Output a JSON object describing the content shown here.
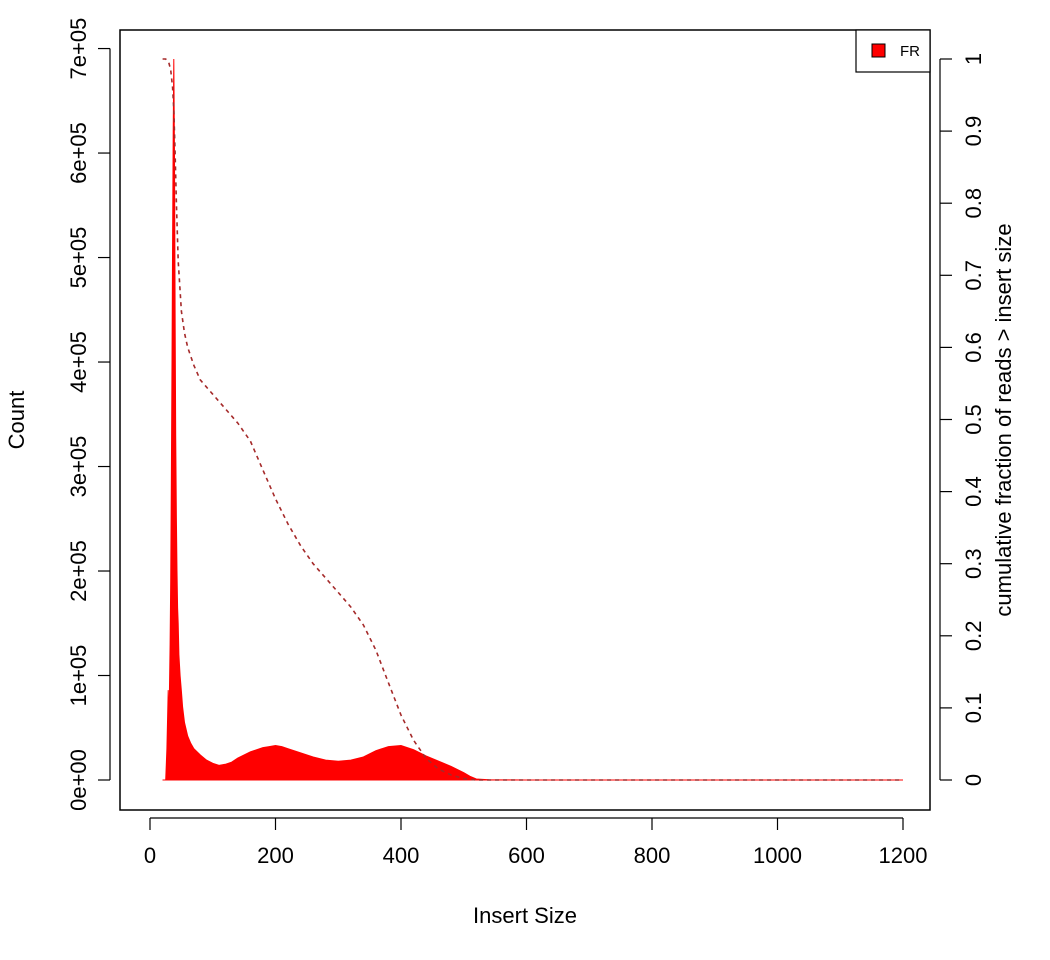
{
  "chart_data": {
    "type": "area",
    "title": "",
    "xlabel": "Insert Size",
    "ylabel": "Count",
    "y2label": "cumulative fraction of reads > insert size",
    "xlim": [
      0,
      1200
    ],
    "ylim": [
      0,
      690000
    ],
    "y2lim": [
      0,
      1
    ],
    "x_ticks": [
      0,
      200,
      400,
      600,
      800,
      1000,
      1200
    ],
    "y_ticks": [
      0,
      100000,
      200000,
      300000,
      400000,
      500000,
      600000,
      700000
    ],
    "y_tick_labels": [
      "0e+00",
      "1e+05",
      "2e+05",
      "3e+05",
      "4e+05",
      "5e+05",
      "6e+05",
      "7e+05"
    ],
    "y2_ticks": [
      0,
      0.1,
      0.2,
      0.3,
      0.4,
      0.5,
      0.6,
      0.7,
      0.8,
      0.9,
      1
    ],
    "y2_tick_labels": [
      "0",
      "0.1",
      "0.2",
      "0.3",
      "0.4",
      "0.5",
      "0.6",
      "0.7",
      "0.8",
      "0.9",
      "1"
    ],
    "grid": false,
    "legend": {
      "position": "top-right",
      "entries": [
        {
          "name": "FR",
          "color": "#ff0000"
        }
      ]
    },
    "series": [
      {
        "name": "FR",
        "kind": "histogram-area",
        "axis": "left",
        "color": "#ff0000",
        "x": [
          20,
          25,
          27,
          28,
          29,
          30,
          31,
          32,
          33,
          34,
          35,
          36,
          37,
          38,
          39,
          40,
          41,
          42,
          43,
          44,
          45,
          46,
          48,
          50,
          52,
          55,
          60,
          65,
          70,
          80,
          90,
          100,
          110,
          120,
          130,
          140,
          150,
          160,
          170,
          180,
          190,
          200,
          210,
          220,
          240,
          260,
          280,
          300,
          320,
          340,
          360,
          380,
          400,
          420,
          440,
          460,
          480,
          490,
          500,
          510,
          520,
          540,
          600,
          800,
          1000,
          1200
        ],
        "y": [
          0,
          0,
          30000,
          60000,
          86000,
          50000,
          90000,
          130000,
          190000,
          280000,
          400000,
          520000,
          620000,
          690000,
          600000,
          450000,
          330000,
          250000,
          200000,
          165000,
          150000,
          120000,
          100000,
          85000,
          70000,
          55000,
          42000,
          35000,
          30000,
          24000,
          19000,
          16000,
          14000,
          15000,
          17000,
          21000,
          24000,
          27000,
          29000,
          31000,
          32000,
          33000,
          32000,
          30000,
          26000,
          22000,
          19000,
          18000,
          19000,
          22000,
          28000,
          32000,
          33000,
          29000,
          23000,
          18000,
          13000,
          10000,
          7000,
          3500,
          1000,
          200,
          0,
          0,
          0,
          0
        ]
      },
      {
        "name": "",
        "kind": "cumulative",
        "axis": "right",
        "color": "#a52a2a",
        "style": "dashed",
        "x": [
          20,
          25,
          30,
          33,
          36,
          38,
          40,
          42,
          45,
          50,
          55,
          60,
          70,
          80,
          100,
          120,
          140,
          160,
          180,
          200,
          220,
          240,
          260,
          280,
          300,
          320,
          340,
          360,
          380,
          400,
          420,
          440,
          460,
          480,
          500,
          510,
          520,
          600,
          800,
          1000,
          1200
        ],
        "y": [
          1.0,
          1.0,
          0.995,
          0.985,
          0.96,
          0.93,
          0.87,
          0.8,
          0.72,
          0.65,
          0.62,
          0.6,
          0.575,
          0.555,
          0.535,
          0.515,
          0.495,
          0.47,
          0.43,
          0.39,
          0.355,
          0.325,
          0.3,
          0.28,
          0.26,
          0.24,
          0.215,
          0.18,
          0.135,
          0.09,
          0.055,
          0.03,
          0.015,
          0.007,
          0.002,
          0.001,
          0,
          0,
          0,
          0,
          0
        ]
      }
    ]
  }
}
